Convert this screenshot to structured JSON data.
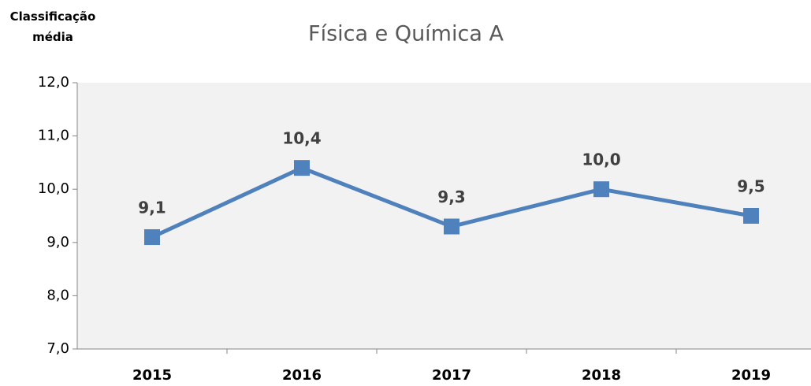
{
  "chart_data": {
    "type": "line",
    "title": "Física e Química A",
    "ylabel": "Classificação média",
    "categories": [
      "2015",
      "2016",
      "2017",
      "2018",
      "2019"
    ],
    "series": [
      {
        "name": "Física e Química A",
        "color": "#4f81bd",
        "values": [
          9.1,
          10.4,
          9.3,
          10.0,
          9.5
        ],
        "value_labels": [
          "9,1",
          "10,4",
          "9,3",
          "10,0",
          "9,5"
        ]
      }
    ],
    "ylim": [
      7,
      12
    ],
    "yticks": [
      {
        "value": 7,
        "label": "7,0"
      },
      {
        "value": 8,
        "label": "8,0"
      },
      {
        "value": 9,
        "label": "9,0"
      },
      {
        "value": 10,
        "label": "10,0"
      },
      {
        "value": 11,
        "label": "11,0"
      },
      {
        "value": 12,
        "label": "12,0"
      }
    ]
  }
}
